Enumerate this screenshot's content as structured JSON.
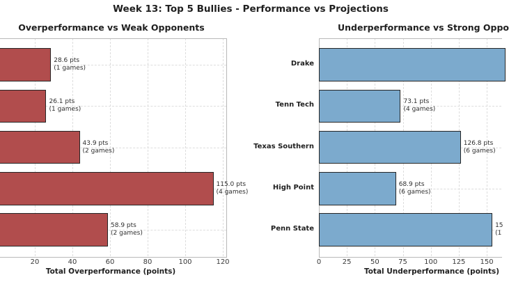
{
  "figure_title": "Week 13: Top 5 Bullies - Performance vs Projections",
  "colors": {
    "overperformance_bar": "#b14d4d",
    "underperformance_bar": "#7caacd",
    "bar_edge": "#262626",
    "grid": "#dddddd",
    "spine": "#b8b8b8",
    "title_text": "#1f1f1f",
    "tick_text": "#3a3a3a",
    "annotation_text": "#2e2e2e"
  },
  "chart_data": [
    {
      "type": "bar",
      "orientation": "horizontal",
      "title": "Overperformance vs Weak Opponents",
      "xlabel": "Total Overperformance (points)",
      "x_ticks": [
        20,
        40,
        60,
        80,
        100,
        120
      ],
      "grid": true,
      "categories_cropped": true,
      "values": [
        28.6,
        26.1,
        43.9,
        115.0,
        58.9
      ],
      "games": [
        1,
        1,
        2,
        4,
        2
      ],
      "bar_labels": [
        "28.6 pts\n(1 games)",
        "26.1 pts\n(1 games)",
        "43.9 pts\n(2 games)",
        "115.0 pts\n(4 games)",
        "58.9 pts\n(2 games)"
      ],
      "note": "y-axis team labels and x=0 origin are cropped off the left edge of the screenshot"
    },
    {
      "type": "bar",
      "orientation": "horizontal",
      "title": "Underperformance vs Strong Oppo",
      "title_clipped": true,
      "xlabel": "Total Underperformance (points)",
      "x_ticks": [
        0,
        25,
        50,
        75,
        100,
        125,
        150
      ],
      "grid": true,
      "categories": [
        "Drake",
        "Tenn Tech",
        "Texas Southern",
        "High Point",
        "Penn State"
      ],
      "values": [
        167,
        73.1,
        126.8,
        68.9,
        155
      ],
      "games": [
        null,
        4,
        6,
        6,
        null
      ],
      "bar_labels": [
        "",
        "73.1 pts\n(4 games)",
        "126.8 pts\n(6 games)",
        "68.9 pts\n(6 games)",
        "15\n(1"
      ],
      "note": "Drake bar and Penn State value label are cut off at the right edge of the screenshot; those two values are estimated from bar pixel lengths (Drake >= 163)"
    }
  ]
}
